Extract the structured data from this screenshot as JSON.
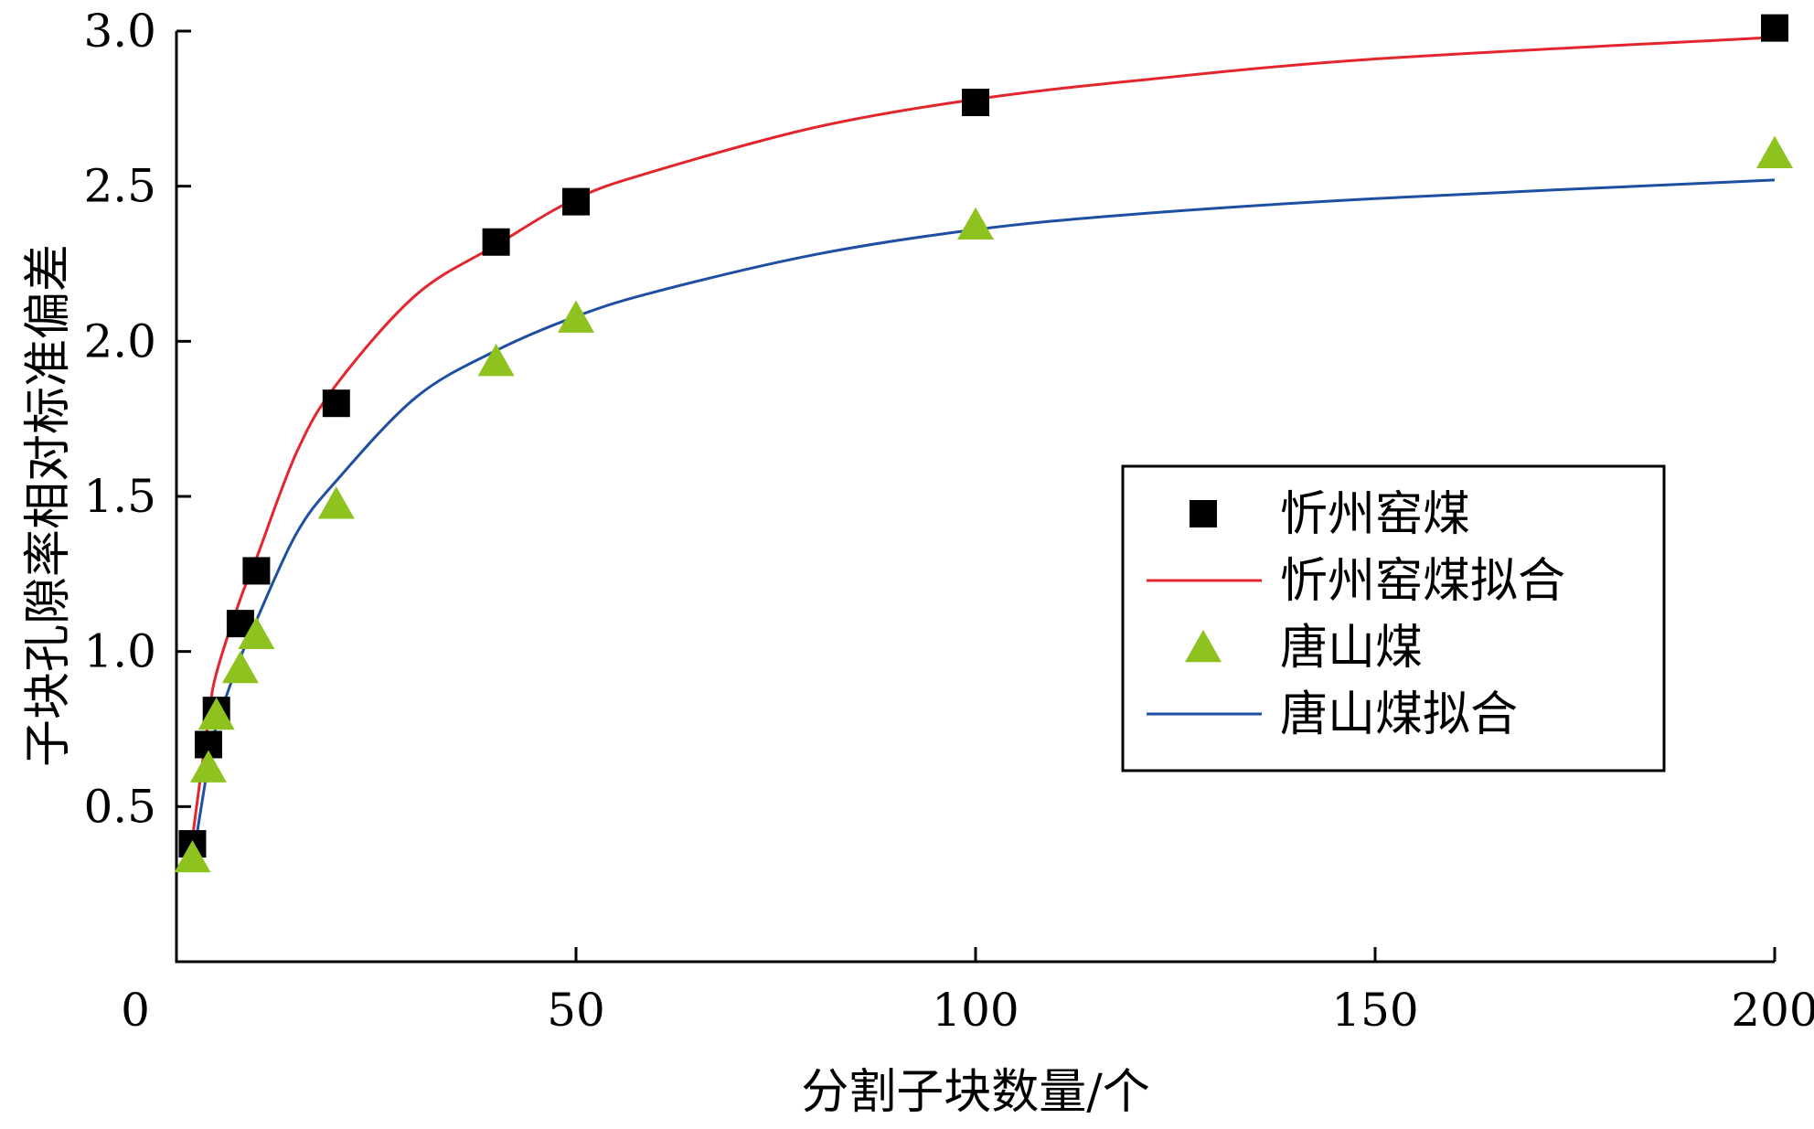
{
  "chart_data": {
    "type": "scatter",
    "title": "",
    "xlabel": "分割子块数量/个",
    "ylabel": "子块孔隙率相对标准偏差",
    "xlim": [
      0,
      200
    ],
    "ylim": [
      0,
      3.0
    ],
    "x_ticks": [
      0,
      50,
      100,
      150,
      200
    ],
    "y_ticks": [
      0.5,
      1.0,
      1.5,
      2.0,
      2.5,
      3.0
    ],
    "x_tick_labels": [
      "0",
      "50",
      "100",
      "150",
      "200"
    ],
    "y_tick_labels": [
      "0.5",
      "1.0",
      "1.5",
      "2.0",
      "2.5",
      "3.0"
    ],
    "grid": false,
    "legend_position": "center-right",
    "series": [
      {
        "name": "忻州窑煤",
        "kind": "scatter",
        "marker": "square",
        "color": "#000000",
        "x": [
          2,
          4,
          5,
          8,
          10,
          20,
          40,
          50,
          100,
          200
        ],
        "y": [
          0.38,
          0.7,
          0.81,
          1.09,
          1.26,
          1.8,
          2.32,
          2.45,
          2.77,
          3.01
        ]
      },
      {
        "name": "忻州窑煤拟合",
        "kind": "line",
        "color": "#e3262d",
        "x": [
          2,
          4,
          5,
          8,
          10,
          15,
          20,
          30,
          40,
          50,
          60,
          80,
          100,
          120,
          150,
          200
        ],
        "y": [
          0.4,
          0.78,
          0.93,
          1.17,
          1.3,
          1.64,
          1.86,
          2.15,
          2.31,
          2.46,
          2.55,
          2.69,
          2.78,
          2.84,
          2.91,
          2.98
        ]
      },
      {
        "name": "唐山煤",
        "kind": "scatter",
        "marker": "triangle",
        "color": "#8dc21f",
        "x": [
          2,
          4,
          5,
          8,
          10,
          20,
          40,
          50,
          100,
          200
        ],
        "y": [
          0.33,
          0.62,
          0.79,
          0.94,
          1.05,
          1.47,
          1.93,
          2.07,
          2.37,
          2.6
        ]
      },
      {
        "name": "唐山煤拟合",
        "kind": "line",
        "color": "#1f4fa2",
        "x": [
          2,
          4,
          5,
          8,
          10,
          15,
          20,
          30,
          40,
          50,
          60,
          80,
          100,
          120,
          150,
          200
        ],
        "y": [
          0.32,
          0.64,
          0.76,
          0.98,
          1.1,
          1.38,
          1.55,
          1.82,
          1.97,
          2.08,
          2.16,
          2.28,
          2.36,
          2.41,
          2.46,
          2.52
        ]
      }
    ]
  }
}
